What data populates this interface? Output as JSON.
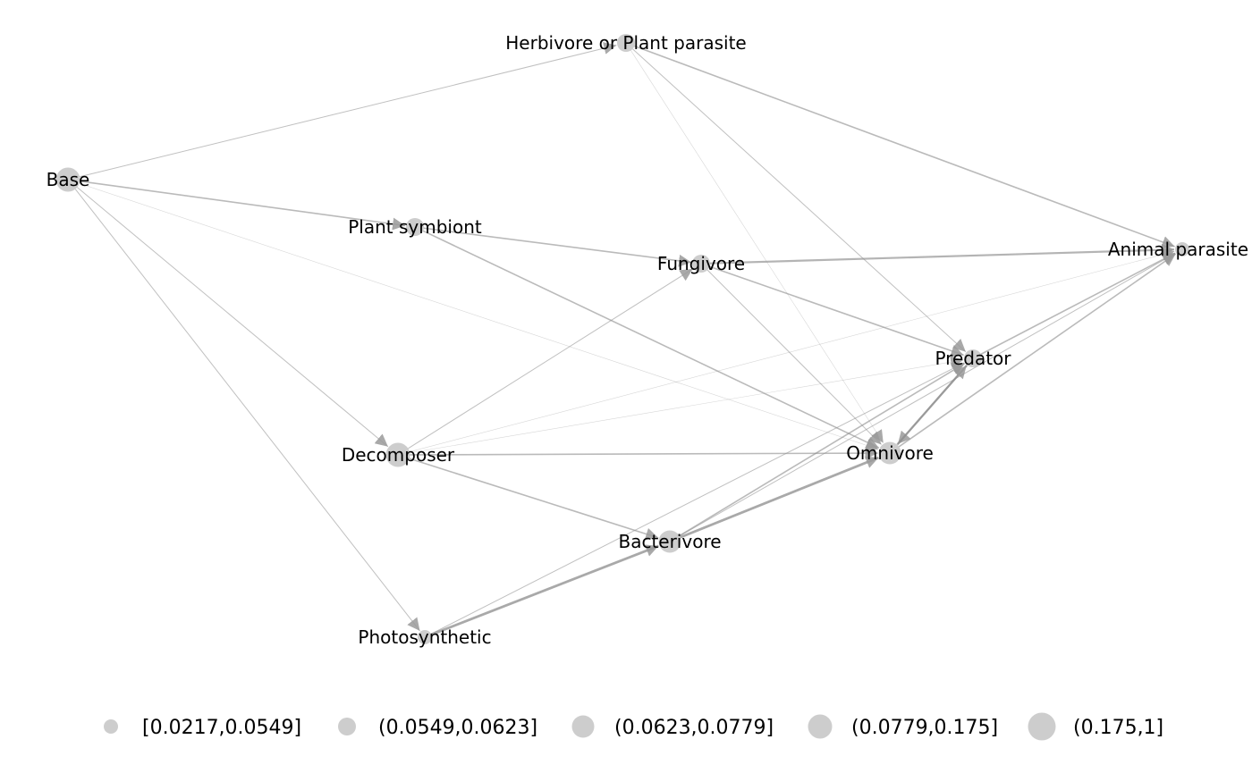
{
  "nodes": [
    {
      "id": "base",
      "label": "Base",
      "size_class": 3
    },
    {
      "id": "herbivore",
      "label": "Herbivore or Plant parasite",
      "size_class": 1
    },
    {
      "id": "plant_symbiont",
      "label": "Plant symbiont",
      "size_class": 1
    },
    {
      "id": "fungivore",
      "label": "Fungivore",
      "size_class": 1
    },
    {
      "id": "animal_parasite",
      "label": "Animal parasite",
      "size_class": 0
    },
    {
      "id": "predator",
      "label": "Predator",
      "size_class": 1
    },
    {
      "id": "decomposer",
      "label": "Decomposer",
      "size_class": 3
    },
    {
      "id": "omnivore",
      "label": "Omnivore",
      "size_class": 2
    },
    {
      "id": "bacterivore",
      "label": "Bacterivore",
      "size_class": 2
    },
    {
      "id": "photosynthetic",
      "label": "Photosynthetic",
      "size_class": 0
    }
  ],
  "edges": [
    {
      "from": "base",
      "to": "herbivore",
      "weight": 1
    },
    {
      "from": "base",
      "to": "plant_symbiont",
      "weight": 2
    },
    {
      "from": "base",
      "to": "decomposer",
      "weight": 1
    },
    {
      "from": "base",
      "to": "photosynthetic",
      "weight": 1
    },
    {
      "from": "base",
      "to": "omnivore",
      "weight": 0
    },
    {
      "from": "herbivore",
      "to": "animal_parasite",
      "weight": 2
    },
    {
      "from": "herbivore",
      "to": "predator",
      "weight": 1
    },
    {
      "from": "herbivore",
      "to": "omnivore",
      "weight": 0
    },
    {
      "from": "plant_symbiont",
      "to": "fungivore",
      "weight": 2
    },
    {
      "from": "plant_symbiont",
      "to": "omnivore",
      "weight": 2
    },
    {
      "from": "fungivore",
      "to": "animal_parasite",
      "weight": 3
    },
    {
      "from": "fungivore",
      "to": "predator",
      "weight": 2
    },
    {
      "from": "fungivore",
      "to": "omnivore",
      "weight": 1
    },
    {
      "from": "decomposer",
      "to": "fungivore",
      "weight": 1
    },
    {
      "from": "decomposer",
      "to": "omnivore",
      "weight": 2
    },
    {
      "from": "decomposer",
      "to": "bacterivore",
      "weight": 2
    },
    {
      "from": "decomposer",
      "to": "animal_parasite",
      "weight": 0
    },
    {
      "from": "decomposer",
      "to": "predator",
      "weight": 0
    },
    {
      "from": "predator",
      "to": "animal_parasite",
      "weight": 2
    },
    {
      "from": "predator",
      "to": "omnivore",
      "weight": 3
    },
    {
      "from": "omnivore",
      "to": "animal_parasite",
      "weight": 2
    },
    {
      "from": "omnivore",
      "to": "predator",
      "weight": 3
    },
    {
      "from": "bacterivore",
      "to": "omnivore",
      "weight": 4
    },
    {
      "from": "bacterivore",
      "to": "predator",
      "weight": 2
    },
    {
      "from": "bacterivore",
      "to": "animal_parasite",
      "weight": 1
    },
    {
      "from": "photosynthetic",
      "to": "bacterivore",
      "weight": 4
    },
    {
      "from": "photosynthetic",
      "to": "predator",
      "weight": 1
    }
  ],
  "legend": [
    {
      "label": "[0.0217,0.0549]",
      "size_class": 0
    },
    {
      "label": "(0.0549,0.0623]",
      "size_class": 1
    },
    {
      "label": "(0.0623,0.0779]",
      "size_class": 2
    },
    {
      "label": "(0.0779,0.175]",
      "size_class": 3
    },
    {
      "label": "(0.175,1]",
      "size_class": 4
    }
  ],
  "colors": {
    "node": "#c4c4c4",
    "edge": "#8c8c8c",
    "label": "#000000"
  }
}
